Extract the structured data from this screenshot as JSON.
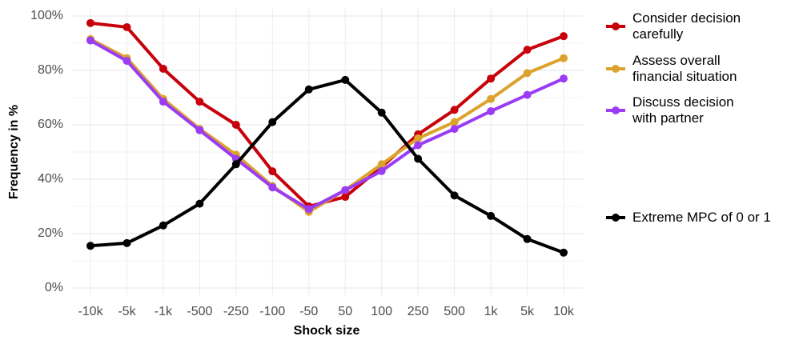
{
  "chart_data": {
    "type": "line",
    "x_label": "Shock size",
    "y_label": "Frequency in %",
    "categories": [
      "-10k",
      "-5k",
      "-1k",
      "-500",
      "-250",
      "-100",
      "-50",
      "50",
      "100",
      "250",
      "500",
      "1k",
      "5k",
      "10k"
    ],
    "series": [
      {
        "name": "Consider decision carefully",
        "color": "#c8000a",
        "values": [
          97.4,
          95.9,
          80.6,
          68.5,
          60,
          42.9,
          30,
          33.5,
          44.5,
          56.5,
          65.5,
          77,
          87.6,
          92.6
        ]
      },
      {
        "name": "Assess overall financial situation",
        "color": "#dca32c",
        "values": [
          91.5,
          84.5,
          69.5,
          58.5,
          49,
          37.5,
          28,
          36,
          45.5,
          55,
          61,
          69.5,
          79,
          84.5
        ]
      },
      {
        "name": "Discuss decision with partner",
        "color": "#9b3cf5",
        "values": [
          91,
          83.5,
          68.5,
          58,
          47.5,
          37,
          29,
          36,
          43,
          52.5,
          58.5,
          65,
          71,
          77
        ]
      },
      {
        "name": "Extreme MPC of 0 or 1",
        "color": "#000000",
        "values": [
          15.5,
          16.5,
          23,
          31,
          45.5,
          61,
          73,
          76.5,
          64.5,
          47.5,
          34,
          26.5,
          18,
          13
        ]
      }
    ],
    "ylim": [
      0,
      100
    ],
    "yticks": [
      {
        "value": 0,
        "label": "0%"
      },
      {
        "value": 20,
        "label": "20%"
      },
      {
        "value": 40,
        "label": "40%"
      },
      {
        "value": 60,
        "label": "60%"
      },
      {
        "value": 80,
        "label": "80%"
      },
      {
        "value": 100,
        "label": "100%"
      }
    ],
    "grid": true,
    "legend": "right"
  }
}
